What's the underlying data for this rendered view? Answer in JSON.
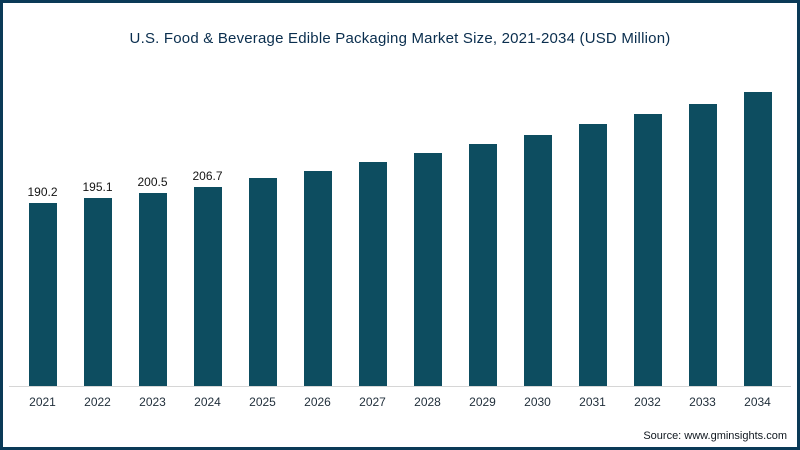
{
  "title": "U.S. Food & Beverage Edible Packaging Market Size, 2021-2034 (USD Million)",
  "source": {
    "text": "Source: www.gminsights.com"
  },
  "colors": {
    "bar": "#0d4d60",
    "border": "#0a3a57",
    "title": "#0a2e4e"
  },
  "chart_data": {
    "type": "bar",
    "title": "U.S. Food & Beverage Edible Packaging Market Size, 2021-2034 (USD Million)",
    "xlabel": "",
    "ylabel": "",
    "ylim": [
      0,
      330
    ],
    "grid": false,
    "legend": false,
    "categories": [
      "2021",
      "2022",
      "2023",
      "2024",
      "2025",
      "2026",
      "2027",
      "2028",
      "2029",
      "2030",
      "2031",
      "2032",
      "2033",
      "2034"
    ],
    "values": [
      190.2,
      195.1,
      200.5,
      206.7,
      215,
      223,
      232,
      241,
      250,
      260,
      271,
      281,
      292,
      304
    ],
    "value_labels": [
      "190.2",
      "195.1",
      "200.5",
      "206.7",
      "",
      "",
      "",
      "",
      "",
      "",
      "",
      "",
      "",
      ""
    ],
    "notes": "Only the first four bars (2021-2024) show printed data labels; later values are estimated from bar heights."
  }
}
